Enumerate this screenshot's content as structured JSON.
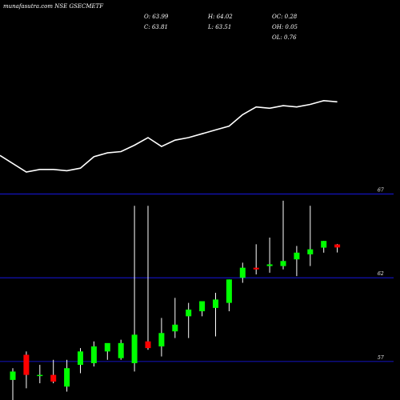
{
  "chart_data": {
    "type": "candlestick",
    "title": "munafasutra.com NSE GSECMETF",
    "ohlc_readout": {
      "open": "O: 63.99",
      "high": "H: 64.02",
      "close": "C: 63.81",
      "low": "L: 63.51",
      "oc": "OC: 0.28",
      "oh": "OH: 0.05",
      "ol": "OL: 0.76"
    },
    "y_axis": {
      "ticks": [
        57,
        62,
        67
      ],
      "ylim": [
        54.7,
        67.6
      ]
    },
    "candles": [
      {
        "o": 55.9,
        "h": 56.6,
        "l": 54.5,
        "c": 56.4
      },
      {
        "o": 57.4,
        "h": 57.6,
        "l": 55.4,
        "c": 56.2
      },
      {
        "o": 56.2,
        "h": 56.8,
        "l": 55.7,
        "c": 56.2
      },
      {
        "o": 56.2,
        "h": 57.1,
        "l": 55.7,
        "c": 55.8
      },
      {
        "o": 55.5,
        "h": 57.1,
        "l": 55.2,
        "c": 56.6
      },
      {
        "o": 56.8,
        "h": 57.8,
        "l": 56.3,
        "c": 57.6
      },
      {
        "o": 56.9,
        "h": 58.2,
        "l": 56.7,
        "c": 57.9
      },
      {
        "o": 57.6,
        "h": 58.0,
        "l": 57.1,
        "c": 58.1
      },
      {
        "o": 57.2,
        "h": 58.3,
        "l": 57.1,
        "c": 58.1
      },
      {
        "o": 56.9,
        "h": 66.3,
        "l": 56.4,
        "c": 58.6
      },
      {
        "o": 58.2,
        "h": 66.3,
        "l": 57.7,
        "c": 57.8
      },
      {
        "o": 57.9,
        "h": 59.6,
        "l": 57.3,
        "c": 58.7
      },
      {
        "o": 58.8,
        "h": 60.8,
        "l": 58.4,
        "c": 59.2
      },
      {
        "o": 59.7,
        "h": 60.5,
        "l": 58.4,
        "c": 60.1
      },
      {
        "o": 60.0,
        "h": 60.6,
        "l": 59.7,
        "c": 60.6
      },
      {
        "o": 60.2,
        "h": 61.1,
        "l": 58.5,
        "c": 60.7
      },
      {
        "o": 60.5,
        "h": 61.9,
        "l": 60.0,
        "c": 61.9
      },
      {
        "o": 62.0,
        "h": 62.9,
        "l": 61.7,
        "c": 62.6
      },
      {
        "o": 62.6,
        "h": 64.0,
        "l": 62.2,
        "c": 62.5
      },
      {
        "o": 62.7,
        "h": 64.4,
        "l": 62.3,
        "c": 62.8
      },
      {
        "o": 62.7,
        "h": 66.6,
        "l": 62.5,
        "c": 63.0
      },
      {
        "o": 63.1,
        "h": 63.9,
        "l": 62.1,
        "c": 63.5
      },
      {
        "o": 63.4,
        "h": 66.3,
        "l": 62.7,
        "c": 63.7
      },
      {
        "o": 63.8,
        "h": 64.2,
        "l": 63.5,
        "c": 64.2
      },
      {
        "o": 63.99,
        "h": 64.02,
        "l": 63.51,
        "c": 63.81
      }
    ],
    "line_series": {
      "values": [
        76,
        74.7,
        74.9,
        74.9,
        74.8,
        75.0,
        75.9,
        76.2,
        76.3,
        76.8,
        77.4,
        76.7,
        77.2,
        77.4,
        77.7,
        78.0,
        78.3,
        79.2,
        79.8,
        79.7,
        79.9,
        79.8,
        80.0,
        80.3,
        80.2
      ]
    },
    "colors": {
      "up": "#00ff00",
      "down": "#ff0000",
      "grid": "#1a1aff",
      "line": "#ffffff",
      "wick": "#ffffff",
      "background": "#000000"
    },
    "grid": true
  }
}
